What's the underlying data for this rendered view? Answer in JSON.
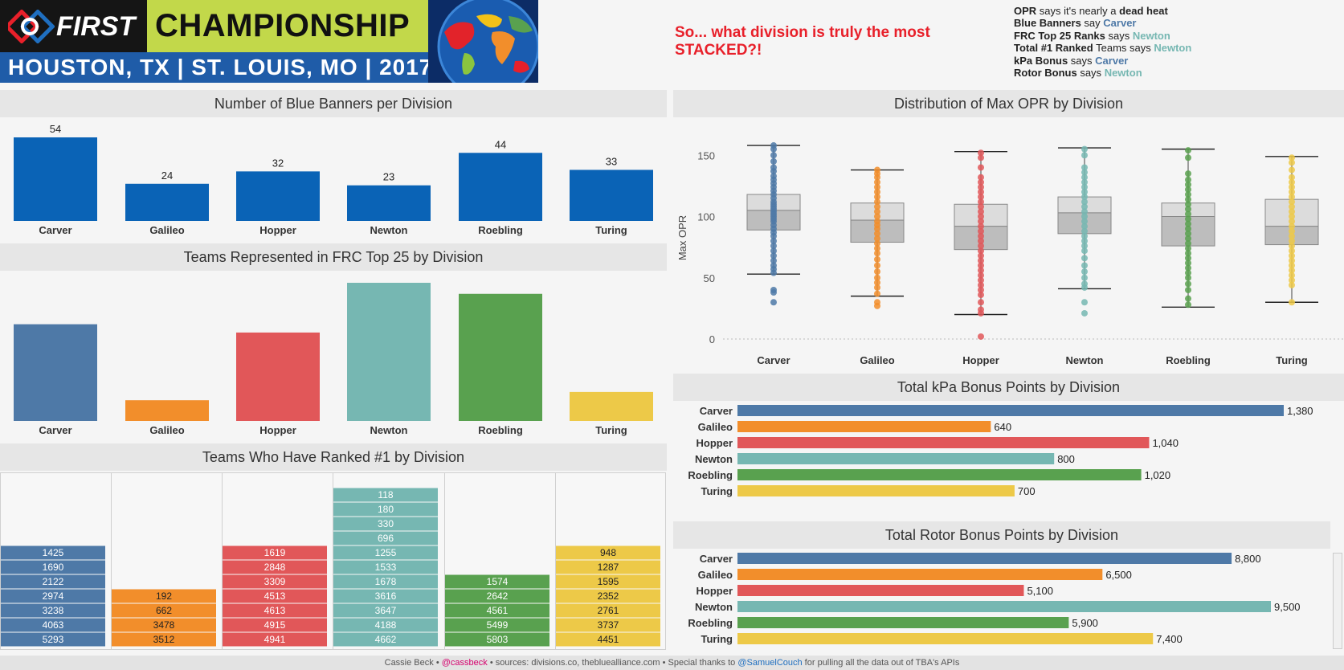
{
  "header": {
    "first_logo": "FIRST",
    "championship": "CHAMPIONSHIP",
    "location": "HOUSTON, TX | ST. LOUIS, MO | 2017",
    "headline": "So... what division is truly the most STACKED?!"
  },
  "verdicts": [
    {
      "metric": "OPR",
      "mid": " says it's nearly a ",
      "result": "dead heat",
      "result_color": "#222222",
      "result_bold": true,
      "metric_bold": true
    },
    {
      "metric": "Blue Banners",
      "mid": " say ",
      "result": "Carver",
      "result_color": "#4e79a7"
    },
    {
      "metric": "FRC Top 25 Ranks",
      "mid": " says ",
      "result": "Newton",
      "result_color": "#76b7b2"
    },
    {
      "metric": "Total #1 Ranked",
      "mid": " Teams says ",
      "result": "Newton",
      "result_color": "#76b7b2"
    },
    {
      "metric": "kPa Bonus",
      "mid": "  says ",
      "result": "Carver",
      "result_color": "#4e79a7"
    },
    {
      "metric": "Rotor Bonus",
      "mid": "  says ",
      "result": "Newton",
      "result_color": "#76b7b2"
    }
  ],
  "colors": {
    "Carver": "#4e79a7",
    "Galileo": "#f28e2b",
    "Hopper": "#e15759",
    "Newton": "#76b7b2",
    "Roebling": "#59a14f",
    "Turing": "#edc948",
    "banner_blue": "#0a63b6"
  },
  "chart_data": [
    {
      "id": "blue-banners",
      "type": "bar",
      "title": "Number of Blue Banners per Division",
      "categories": [
        "Carver",
        "Galileo",
        "Hopper",
        "Newton",
        "Roebling",
        "Turing"
      ],
      "values": [
        54,
        24,
        32,
        23,
        44,
        33
      ],
      "data_labels": [
        "54",
        "24",
        "32",
        "23",
        "44",
        "33"
      ]
    },
    {
      "id": "top25",
      "type": "bar",
      "title": "Teams Represented in FRC Top 25 by Division",
      "categories": [
        "Carver",
        "Galileo",
        "Hopper",
        "Newton",
        "Roebling",
        "Turing"
      ],
      "values": [
        7,
        1.5,
        6.4,
        10,
        9.2,
        2.1
      ]
    },
    {
      "id": "ranked1",
      "type": "table",
      "title": "Teams Who Have Ranked #1 by Division",
      "columns": [
        {
          "division": "Carver",
          "teams": [
            "1425",
            "1690",
            "2122",
            "2974",
            "3238",
            "4063",
            "5293"
          ]
        },
        {
          "division": "Galileo",
          "teams": [
            "192",
            "662",
            "3478",
            "3512"
          ]
        },
        {
          "division": "Hopper",
          "teams": [
            "1619",
            "2848",
            "3309",
            "4513",
            "4613",
            "4915",
            "4941"
          ]
        },
        {
          "division": "Newton",
          "teams": [
            "118",
            "180",
            "330",
            "696",
            "1255",
            "1533",
            "1678",
            "3616",
            "3647",
            "4188",
            "4662"
          ]
        },
        {
          "division": "Roebling",
          "teams": [
            "1574",
            "2642",
            "4561",
            "5499",
            "5803"
          ]
        },
        {
          "division": "Turing",
          "teams": [
            "948",
            "1287",
            "1595",
            "2352",
            "2761",
            "3737",
            "4451"
          ]
        }
      ]
    },
    {
      "id": "opr",
      "type": "box",
      "title": "Distribution of Max OPR by Division",
      "ylabel": "Max OPR",
      "ylim": [
        0,
        160
      ],
      "yticks": [
        0,
        50,
        100,
        150
      ],
      "categories": [
        "Carver",
        "Galileo",
        "Hopper",
        "Newton",
        "Roebling",
        "Turing"
      ],
      "boxes": [
        {
          "min": 53,
          "q1": 89,
          "median": 105,
          "q3": 118,
          "max": 158,
          "points": [
            158,
            155,
            150,
            145,
            140,
            137,
            133,
            130,
            127,
            124,
            121,
            118,
            115,
            112,
            110,
            108,
            106,
            104,
            102,
            100,
            98,
            96,
            93,
            90,
            87,
            84,
            80,
            76,
            72,
            68,
            64,
            60,
            57,
            54,
            40,
            38,
            30
          ]
        },
        {
          "min": 35,
          "q1": 79,
          "median": 97,
          "q3": 111,
          "max": 138,
          "points": [
            138,
            135,
            132,
            128,
            124,
            120,
            116,
            112,
            108,
            104,
            100,
            96,
            93,
            90,
            86,
            82,
            78,
            74,
            70,
            65,
            60,
            55,
            50,
            46,
            42,
            37,
            30,
            27
          ]
        },
        {
          "min": 20,
          "q1": 73,
          "median": 92,
          "q3": 110,
          "max": 153,
          "points": [
            152,
            148,
            140,
            132,
            128,
            124,
            120,
            116,
            112,
            108,
            104,
            100,
            96,
            92,
            88,
            84,
            80,
            76,
            72,
            68,
            64,
            60,
            56,
            52,
            48,
            44,
            40,
            36,
            30,
            24,
            21,
            2
          ]
        },
        {
          "min": 41,
          "q1": 86,
          "median": 103,
          "q3": 116,
          "max": 156,
          "points": [
            155,
            150,
            140,
            136,
            132,
            128,
            124,
            120,
            116,
            112,
            108,
            104,
            100,
            96,
            92,
            88,
            84,
            80,
            76,
            72,
            66,
            60,
            55,
            50,
            45,
            42,
            30,
            21
          ]
        },
        {
          "min": 26,
          "q1": 76,
          "median": 100,
          "q3": 111,
          "max": 155,
          "points": [
            154,
            148,
            135,
            130,
            126,
            122,
            118,
            114,
            110,
            106,
            102,
            98,
            94,
            90,
            86,
            82,
            78,
            74,
            70,
            66,
            62,
            58,
            54,
            50,
            45,
            40,
            33,
            28
          ]
        },
        {
          "min": 30,
          "q1": 77,
          "median": 92,
          "q3": 114,
          "max": 149,
          "points": [
            148,
            144,
            138,
            132,
            128,
            124,
            120,
            116,
            112,
            108,
            104,
            100,
            96,
            92,
            88,
            84,
            80,
            76,
            72,
            68,
            64,
            60,
            56,
            52,
            48,
            44,
            30
          ]
        }
      ]
    },
    {
      "id": "kpa",
      "type": "bar",
      "orientation": "horizontal",
      "title": "Total kPa Bonus Points by Division",
      "categories": [
        "Carver",
        "Galileo",
        "Hopper",
        "Newton",
        "Roebling",
        "Turing"
      ],
      "values": [
        1380,
        640,
        1040,
        800,
        1020,
        700
      ],
      "data_labels": [
        "1,380",
        "640",
        "1,040",
        "800",
        "1,020",
        "700"
      ]
    },
    {
      "id": "rotor",
      "type": "bar",
      "orientation": "horizontal",
      "title": "Total Rotor Bonus Points by Division",
      "categories": [
        "Carver",
        "Galileo",
        "Hopper",
        "Newton",
        "Roebling",
        "Turing"
      ],
      "values": [
        8800,
        6500,
        5100,
        9500,
        5900,
        7400
      ],
      "data_labels": [
        "8,800",
        "6,500",
        "5,100",
        "9,500",
        "5,900",
        "7,400"
      ]
    }
  ],
  "footer": {
    "author": "Cassie Beck • ",
    "handle1": "@cassbeck",
    "sources": " • sources: divisions.co, thebluealliance.com • Special thanks to ",
    "handle2": "@SamuelCouch",
    "tail": " for pulling all the data out of TBA's APIs"
  }
}
